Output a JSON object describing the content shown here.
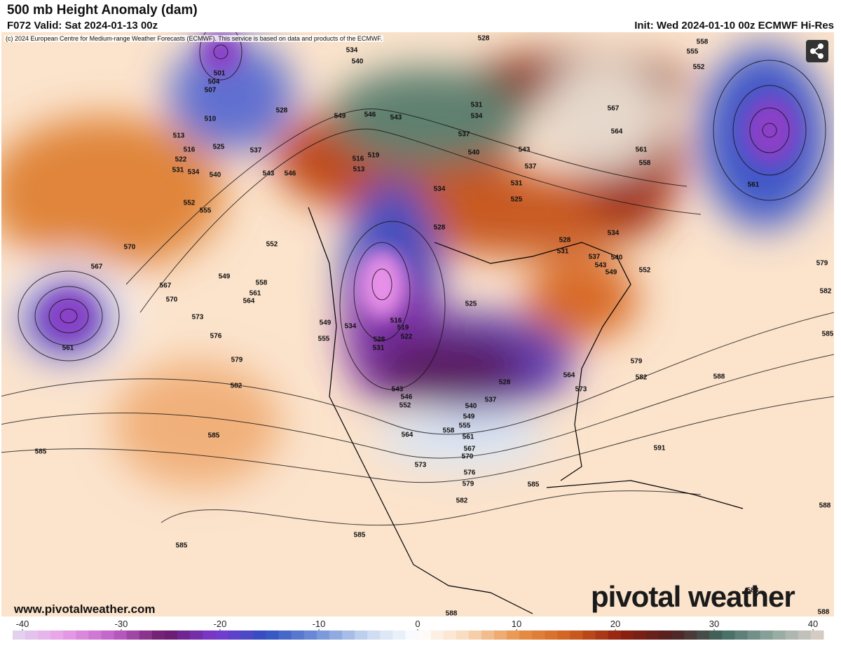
{
  "header": {
    "title": "500 mb Height Anomaly (dam)",
    "valid": "F072 Valid: Sat 2024-01-13 00z",
    "init": "Init: Wed 2024-01-10 00z ECMWF Hi-Res",
    "copyright": "(c) 2024 European Centre for Medium-range Weather Forecasts (ECMWF). This service is based on data and products of the ECMWF."
  },
  "map": {
    "contour_labels": [
      528,
      534,
      540,
      501,
      504,
      507,
      528,
      510,
      549,
      546,
      543,
      531,
      534,
      567,
      564,
      561,
      558,
      558,
      555,
      552,
      513,
      516,
      522,
      531,
      534,
      525,
      537,
      540,
      543,
      546,
      519,
      516,
      513,
      537,
      540,
      543,
      537,
      531,
      534,
      525,
      528,
      561,
      552,
      555,
      570,
      567,
      549,
      552,
      558,
      561,
      564,
      567,
      570,
      573,
      576,
      579,
      582,
      561,
      528,
      531,
      534,
      537,
      540,
      543,
      549,
      552,
      579,
      582,
      585,
      579,
      582,
      588,
      525,
      516,
      519,
      522,
      534,
      549,
      555,
      528,
      531,
      543,
      546,
      552,
      540,
      537,
      528,
      564,
      573,
      549,
      555,
      558,
      561,
      564,
      567,
      570,
      573,
      576,
      579,
      582,
      585,
      591,
      585,
      585,
      585,
      585,
      588,
      588,
      588,
      588
    ]
  },
  "footer": {
    "website": "www.pivotalweather.com",
    "watermark": "pivotal weather"
  },
  "colorbar": {
    "range": [
      -40,
      40
    ],
    "ticks": [
      -40,
      -30,
      -20,
      -10,
      0,
      10,
      20,
      30,
      40
    ]
  }
}
